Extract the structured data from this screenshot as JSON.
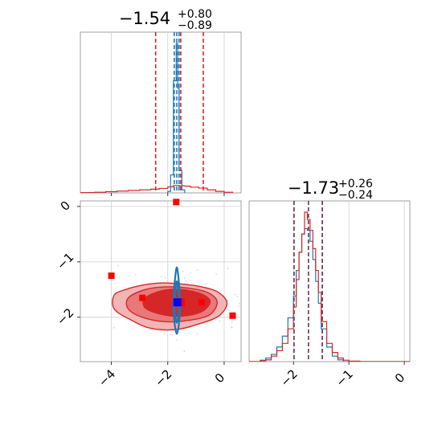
{
  "chart_data": {
    "type": "corner",
    "parameters": [
      {
        "title": {
          "median": "−1.54",
          "plus": "+0.80",
          "minus": "−0.89"
        },
        "range": [
          -5.1,
          0.6
        ],
        "ticks": [
          -4,
          -2,
          0
        ],
        "tick_labels": [
          "−4",
          "−2",
          "0"
        ]
      },
      {
        "title": {
          "median": "−1.73",
          "plus": "+0.26",
          "minus": "−0.24"
        },
        "range": [
          -2.8,
          0.1
        ],
        "ticks": [
          -2,
          -1,
          0
        ],
        "tick_labels": [
          "−2",
          "−1",
          "0"
        ]
      }
    ],
    "series": [
      {
        "name": "",
        "color": "#d62728",
        "marginal_0": {
          "bins": [
            [
              -5.1,
              -4.6,
              0.002
            ],
            [
              -4.6,
              -4.2,
              0.004
            ],
            [
              -4.2,
              -3.8,
              0.008
            ],
            [
              -3.8,
              -3.4,
              0.012
            ],
            [
              -3.4,
              -3.0,
              0.016
            ],
            [
              -3.0,
              -2.6,
              0.02
            ],
            [
              -2.6,
              -2.3,
              0.025
            ],
            [
              -2.3,
              -2.0,
              0.03
            ],
            [
              -2.0,
              -1.8,
              0.04
            ],
            [
              -1.8,
              -1.6,
              0.05
            ],
            [
              -1.6,
              -1.4,
              0.047
            ],
            [
              -1.4,
              -1.2,
              0.045
            ],
            [
              -1.2,
              -0.9,
              0.038
            ],
            [
              -0.9,
              -0.6,
              0.032
            ],
            [
              -0.6,
              -0.3,
              0.02
            ],
            [
              -0.3,
              0.0,
              0.01
            ],
            [
              0.0,
              0.3,
              0.004
            ]
          ],
          "quantile_lines": [
            -2.43,
            -1.54,
            -0.74
          ]
        },
        "marginal_1": {
          "bins": [
            [
              -2.8,
              -2.6,
              0.0
            ],
            [
              -2.6,
              -2.5,
              0.005
            ],
            [
              -2.5,
              -2.4,
              0.01
            ],
            [
              -2.4,
              -2.3,
              0.03
            ],
            [
              -2.3,
              -2.2,
              0.06
            ],
            [
              -2.2,
              -2.1,
              0.1
            ],
            [
              -2.1,
              -2.0,
              0.18
            ],
            [
              -2.0,
              -1.95,
              0.3
            ],
            [
              -1.95,
              -1.9,
              0.45
            ],
            [
              -1.9,
              -1.85,
              0.6
            ],
            [
              -1.85,
              -1.8,
              0.7
            ],
            [
              -1.8,
              -1.75,
              0.82
            ],
            [
              -1.75,
              -1.7,
              0.78
            ],
            [
              -1.7,
              -1.65,
              0.72
            ],
            [
              -1.65,
              -1.6,
              0.62
            ],
            [
              -1.6,
              -1.55,
              0.5
            ],
            [
              -1.55,
              -1.5,
              0.38
            ],
            [
              -1.5,
              -1.4,
              0.22
            ],
            [
              -1.4,
              -1.3,
              0.1
            ],
            [
              -1.3,
              -1.2,
              0.05
            ],
            [
              -1.2,
              -1.1,
              0.02
            ],
            [
              -1.1,
              -1.0,
              0.008
            ],
            [
              -1.0,
              -0.8,
              0.003
            ],
            [
              -0.8,
              0.1,
              0.0
            ]
          ],
          "quantile_lines": [
            -1.99,
            -1.73,
            -1.48
          ]
        },
        "joint": {
          "contour_levels": [
            {
              "fill": "#f2b5b6",
              "points": [
                [
                  -3.9,
                  -1.6
                ],
                [
                  -3.5,
                  -1.5
                ],
                [
                  -2.9,
                  -1.42
                ],
                [
                  -2.2,
                  -1.38
                ],
                [
                  -1.5,
                  -1.4
                ],
                [
                  -0.8,
                  -1.45
                ],
                [
                  -0.2,
                  -1.55
                ],
                [
                  0.1,
                  -1.75
                ],
                [
                  -0.2,
                  -1.98
                ],
                [
                  -0.9,
                  -2.12
                ],
                [
                  -1.7,
                  -2.22
                ],
                [
                  -2.6,
                  -2.2
                ],
                [
                  -3.3,
                  -2.05
                ],
                [
                  -3.9,
                  -1.85
                ]
              ]
            },
            {
              "fill": "#e8787a",
              "points": [
                [
                  -3.4,
                  -1.65
                ],
                [
                  -2.8,
                  -1.5
                ],
                [
                  -2.1,
                  -1.45
                ],
                [
                  -1.3,
                  -1.47
                ],
                [
                  -0.6,
                  -1.55
                ],
                [
                  -0.25,
                  -1.72
                ],
                [
                  -0.5,
                  -1.95
                ],
                [
                  -1.2,
                  -2.05
                ],
                [
                  -2.1,
                  -2.08
                ],
                [
                  -2.9,
                  -2.0
                ],
                [
                  -3.4,
                  -1.85
                ]
              ]
            },
            {
              "fill": "#d62728",
              "points": [
                [
                  -2.8,
                  -1.65
                ],
                [
                  -2.2,
                  -1.52
                ],
                [
                  -1.5,
                  -1.5
                ],
                [
                  -0.8,
                  -1.58
                ],
                [
                  -0.5,
                  -1.72
                ],
                [
                  -0.8,
                  -1.9
                ],
                [
                  -1.5,
                  -1.98
                ],
                [
                  -2.2,
                  -1.95
                ],
                [
                  -2.8,
                  -1.83
                ]
              ]
            }
          ],
          "points": [
            [
              -2.9,
              -1.65
            ],
            [
              -0.8,
              -1.73
            ],
            [
              -1.7,
              0.08
            ],
            [
              -4.0,
              -1.25
            ],
            [
              0.3,
              -1.97
            ]
          ],
          "truth": [
            -1.54,
            -1.73
          ]
        }
      },
      {
        "name": "",
        "color": "#1f77b4",
        "marginal_0": {
          "bins": [
            [
              -2.0,
              -1.9,
              0.01
            ],
            [
              -1.9,
              -1.8,
              0.12
            ],
            [
              -1.8,
              -1.7,
              0.75
            ],
            [
              -1.7,
              -1.65,
              1.0
            ],
            [
              -1.65,
              -1.6,
              0.7
            ],
            [
              -1.6,
              -1.5,
              0.15
            ],
            [
              -1.5,
              -1.4,
              0.02
            ]
          ],
          "quantile_lines": [
            -1.77,
            -1.68,
            -1.6
          ]
        },
        "marginal_1": {
          "bins": [
            [
              -2.8,
              -2.6,
              0.0
            ],
            [
              -2.6,
              -2.5,
              0.008
            ],
            [
              -2.5,
              -2.4,
              0.02
            ],
            [
              -2.4,
              -2.3,
              0.04
            ],
            [
              -2.3,
              -2.2,
              0.08
            ],
            [
              -2.2,
              -2.1,
              0.14
            ],
            [
              -2.1,
              -2.0,
              0.24
            ],
            [
              -2.0,
              -1.95,
              0.36
            ],
            [
              -1.95,
              -1.9,
              0.5
            ],
            [
              -1.9,
              -1.85,
              0.6
            ],
            [
              -1.85,
              -1.8,
              0.7
            ],
            [
              -1.8,
              -1.75,
              0.73
            ],
            [
              -1.75,
              -1.7,
              0.72
            ],
            [
              -1.7,
              -1.65,
              0.66
            ],
            [
              -1.65,
              -1.6,
              0.56
            ],
            [
              -1.6,
              -1.55,
              0.44
            ],
            [
              -1.55,
              -1.5,
              0.32
            ],
            [
              -1.5,
              -1.4,
              0.18
            ],
            [
              -1.4,
              -1.3,
              0.08
            ],
            [
              -1.3,
              -1.2,
              0.03
            ],
            [
              -1.2,
              -1.1,
              0.01
            ],
            [
              -1.1,
              0.1,
              0.0
            ]
          ],
          "quantile_lines": [
            -1.99,
            -1.73,
            -1.48
          ]
        },
        "joint": {
          "contour_levels": [
            {
              "fill": "none",
              "points": [
                [
                  -1.68,
                  -1.1
                ],
                [
                  -1.6,
                  -1.4
                ],
                [
                  -1.56,
                  -1.75
                ],
                [
                  -1.6,
                  -2.1
                ],
                [
                  -1.68,
                  -2.3
                ],
                [
                  -1.76,
                  -2.1
                ],
                [
                  -1.8,
                  -1.75
                ],
                [
                  -1.76,
                  -1.4
                ]
              ]
            },
            {
              "fill": "none",
              "points": [
                [
                  -1.68,
                  -1.35
                ],
                [
                  -1.62,
                  -1.55
                ],
                [
                  -1.6,
                  -1.75
                ],
                [
                  -1.62,
                  -1.95
                ],
                [
                  -1.68,
                  -2.1
                ],
                [
                  -1.74,
                  -1.95
                ],
                [
                  -1.76,
                  -1.75
                ],
                [
                  -1.74,
                  -1.55
                ]
              ]
            }
          ],
          "truth": [
            -1.66,
            -1.73
          ]
        }
      }
    ]
  }
}
